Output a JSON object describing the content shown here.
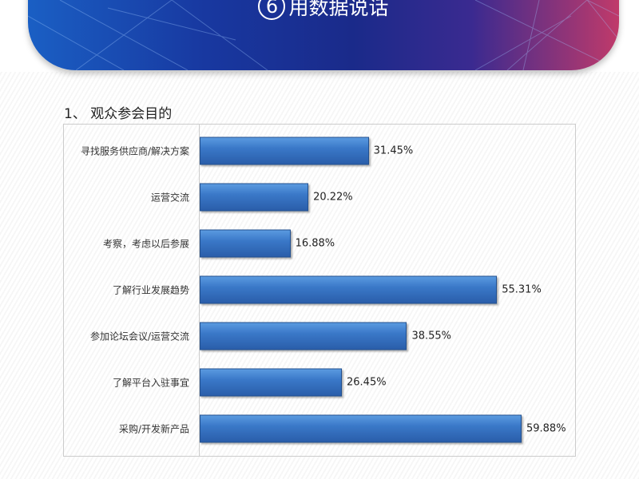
{
  "header": {
    "number": "6",
    "title": "用数据说话"
  },
  "section_title": "1、 观众参会目的",
  "chart_data": {
    "type": "bar",
    "orientation": "horizontal",
    "title": "",
    "xlim": [
      0,
      60
    ],
    "grid": false,
    "categories": [
      "寻找服务供应商/解决方案",
      "运营交流",
      "考察，考虑以后参展",
      "了解行业发展趋势",
      "参加论坛会议/运营交流",
      "了解平台入驻事宜",
      "采购/开发新产品"
    ],
    "values": [
      31.45,
      20.22,
      16.88,
      55.31,
      38.55,
      26.45,
      59.88
    ],
    "labels": [
      "31.45%",
      "20.22%",
      "16.88%",
      "55.31%",
      "38.55%",
      "26.45%",
      "59.88%"
    ],
    "bar_color": "#3a78c8"
  }
}
